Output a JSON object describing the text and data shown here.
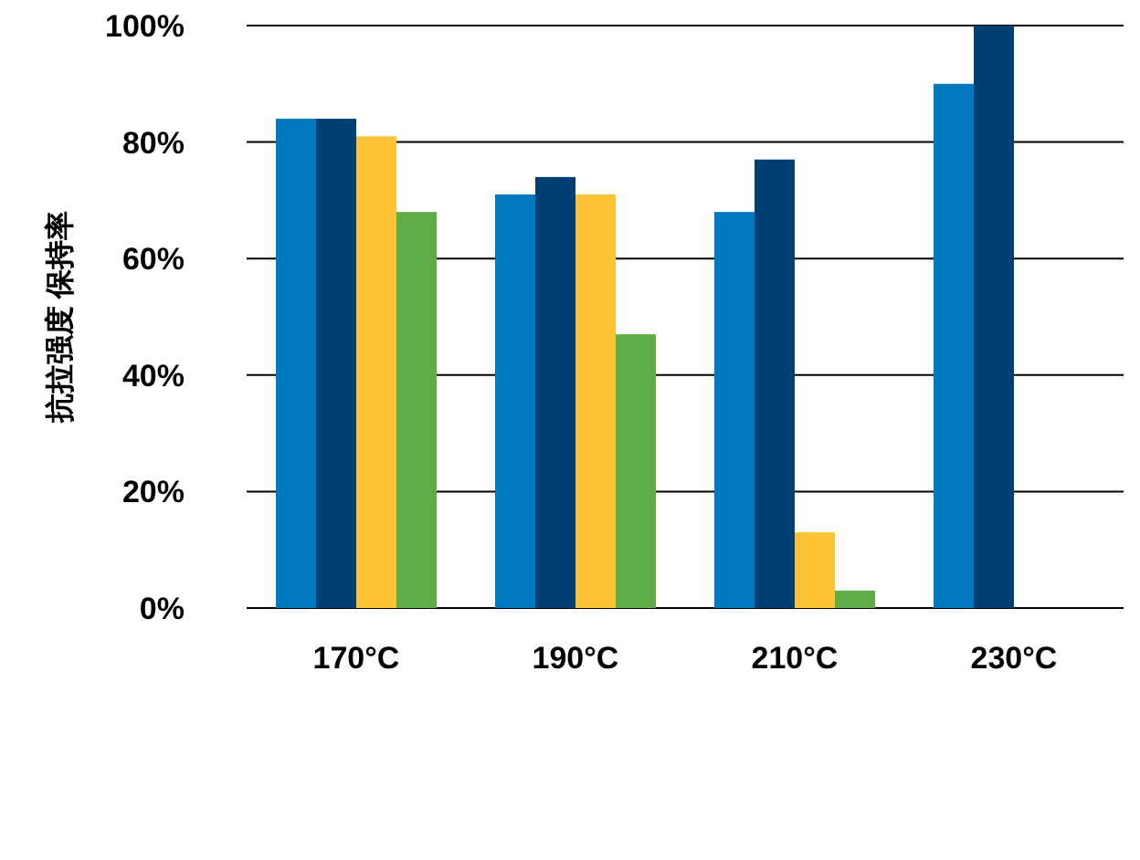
{
  "chart_data": {
    "type": "bar",
    "ylabel": "抗拉强度 保持率",
    "categories": [
      "170°C",
      "190°C",
      "210°C",
      "230°C"
    ],
    "series": [
      {
        "color": "#0079c1",
        "values": [
          84,
          71,
          68,
          90
        ]
      },
      {
        "color": "#003f72",
        "values": [
          84,
          74,
          77,
          100
        ]
      },
      {
        "color": "#fec236",
        "values": [
          81,
          71,
          13,
          null
        ]
      },
      {
        "color": "#5fad46",
        "values": [
          68,
          47,
          3,
          null
        ]
      }
    ],
    "ylim": [
      0,
      100
    ],
    "yticks": [
      {
        "value": 0,
        "label": "0%"
      },
      {
        "value": 20,
        "label": "20%"
      },
      {
        "value": 40,
        "label": "40%"
      },
      {
        "value": 60,
        "label": "60%"
      },
      {
        "value": 80,
        "label": "80%"
      },
      {
        "value": 100,
        "label": "100%"
      }
    ],
    "grid": "y",
    "legend": false
  }
}
